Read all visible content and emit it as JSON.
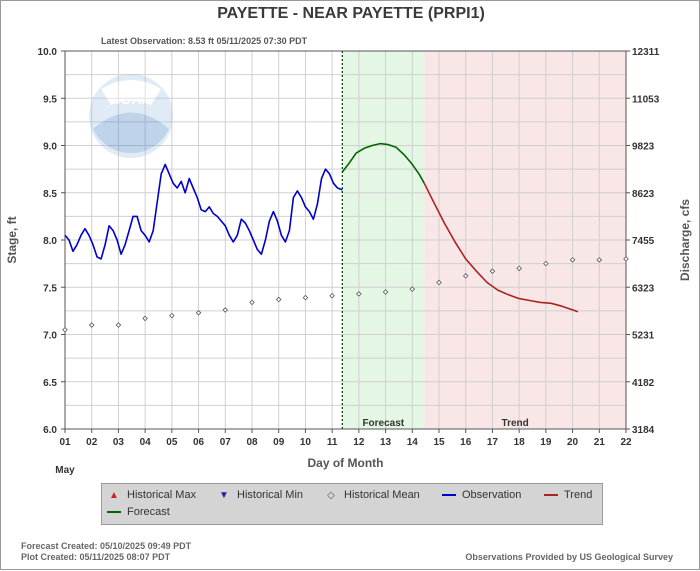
{
  "header": {
    "title": "PAYETTE - NEAR PAYETTE  (PRPI1)",
    "latest_observation": "Latest Observation: 8.53 ft 05/11/2025 07:30 PDT"
  },
  "footer": {
    "forecast_created": "Forecast Created: 05/10/2025 09:49 PDT",
    "plot_created": "Plot Created: 05/11/2025 08:07 PDT",
    "provided_by": "Observations Provided by US Geological Survey"
  },
  "legend": {
    "historical_max": "Historical Max",
    "historical_min": "Historical Min",
    "historical_mean": "Historical Mean",
    "observation": "Observation",
    "trend": "Trend",
    "forecast": "Forecast"
  },
  "colors": {
    "observation": "#0000cc",
    "forecast": "#006600",
    "trend": "#aa2222",
    "historical_max": "#cc2222",
    "historical_min": "#2222aa",
    "forecast_band": "#e4f6e4",
    "trend_band": "#f9e6e6",
    "grid": "#d0d0d0"
  },
  "chart_data": {
    "type": "line",
    "title": "PAYETTE - NEAR PAYETTE  (PRPI1)",
    "xlabel": "Day of Month",
    "ylabel": "Stage, ft",
    "y2label": "Discharge, cfs",
    "month_label": "May",
    "xlim": [
      1,
      22
    ],
    "ylim": [
      6.0,
      10.0
    ],
    "x_ticks": [
      "01",
      "02",
      "03",
      "04",
      "05",
      "06",
      "07",
      "08",
      "09",
      "10",
      "11",
      "12",
      "13",
      "14",
      "15",
      "16",
      "17",
      "18",
      "19",
      "20",
      "21",
      "22"
    ],
    "y_ticks": [
      "10.0",
      "9.5",
      "9.0",
      "8.5",
      "8.0",
      "7.5",
      "7.0",
      "6.5",
      "6.0"
    ],
    "y2_ticks": [
      "12311",
      "11053",
      "9823",
      "8623",
      "7455",
      "6323",
      "5231",
      "4182",
      "3184"
    ],
    "observation_time_day": 11.38,
    "forecast_region": {
      "label": "Forecast",
      "from": 11.38,
      "to": 14.45
    },
    "trend_region": {
      "label": "Trend",
      "from": 14.45,
      "to": 22
    },
    "series": [
      {
        "name": "Observation",
        "x": [
          1.0,
          1.15,
          1.3,
          1.45,
          1.6,
          1.75,
          1.9,
          2.05,
          2.2,
          2.35,
          2.5,
          2.65,
          2.8,
          2.95,
          3.1,
          3.25,
          3.4,
          3.55,
          3.7,
          3.85,
          4.0,
          4.15,
          4.3,
          4.45,
          4.6,
          4.75,
          4.9,
          5.05,
          5.2,
          5.35,
          5.5,
          5.65,
          5.8,
          5.95,
          6.1,
          6.25,
          6.4,
          6.55,
          6.7,
          6.85,
          7.0,
          7.15,
          7.3,
          7.45,
          7.6,
          7.75,
          7.9,
          8.05,
          8.2,
          8.35,
          8.5,
          8.65,
          8.8,
          8.95,
          9.1,
          9.25,
          9.4,
          9.55,
          9.7,
          9.85,
          10.0,
          10.15,
          10.3,
          10.45,
          10.6,
          10.75,
          10.9,
          11.05,
          11.2,
          11.38
        ],
        "values": [
          8.05,
          8.0,
          7.88,
          7.95,
          8.05,
          8.12,
          8.05,
          7.95,
          7.82,
          7.8,
          7.95,
          8.15,
          8.1,
          8.0,
          7.85,
          7.95,
          8.1,
          8.25,
          8.25,
          8.1,
          8.05,
          7.98,
          8.1,
          8.4,
          8.7,
          8.8,
          8.7,
          8.6,
          8.55,
          8.62,
          8.5,
          8.65,
          8.55,
          8.45,
          8.32,
          8.3,
          8.35,
          8.28,
          8.25,
          8.2,
          8.15,
          8.05,
          7.98,
          8.05,
          8.22,
          8.18,
          8.1,
          8.0,
          7.9,
          7.85,
          8.0,
          8.2,
          8.3,
          8.2,
          8.05,
          7.98,
          8.1,
          8.45,
          8.52,
          8.45,
          8.35,
          8.3,
          8.22,
          8.38,
          8.65,
          8.75,
          8.7,
          8.6,
          8.55,
          8.53
        ]
      },
      {
        "name": "Forecast",
        "x": [
          11.38,
          11.6,
          11.9,
          12.2,
          12.5,
          12.8,
          13.1,
          13.4,
          13.7,
          14.0,
          14.25,
          14.45
        ],
        "values": [
          8.72,
          8.8,
          8.92,
          8.97,
          9.0,
          9.02,
          9.01,
          8.98,
          8.9,
          8.8,
          8.7,
          8.6
        ]
      },
      {
        "name": "Trend",
        "x": [
          14.45,
          14.8,
          15.2,
          15.6,
          16.0,
          16.4,
          16.8,
          17.2,
          17.6,
          18.0,
          18.4,
          18.8,
          19.2,
          19.6,
          20.0,
          20.2
        ],
        "values": [
          8.6,
          8.4,
          8.18,
          7.98,
          7.8,
          7.67,
          7.55,
          7.47,
          7.42,
          7.38,
          7.36,
          7.34,
          7.33,
          7.3,
          7.26,
          7.24
        ]
      },
      {
        "name": "Historical Mean",
        "x": [
          1,
          2,
          3,
          4,
          5,
          6,
          7,
          8,
          9,
          10,
          11,
          12,
          13,
          14,
          15,
          16,
          17,
          18,
          19,
          20,
          21,
          22
        ],
        "values": [
          7.05,
          7.1,
          7.1,
          7.17,
          7.2,
          7.23,
          7.26,
          7.34,
          7.37,
          7.39,
          7.41,
          7.43,
          7.45,
          7.48,
          7.55,
          7.62,
          7.67,
          7.7,
          7.75,
          7.79,
          7.79,
          7.8
        ]
      }
    ]
  }
}
